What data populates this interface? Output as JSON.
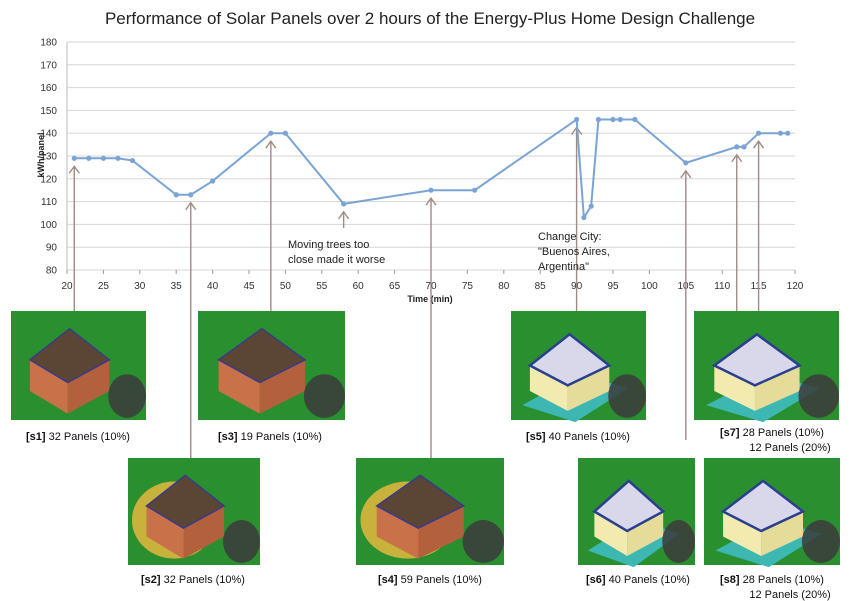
{
  "chart_data": {
    "type": "line",
    "title": "Performance of Solar Panels over 2 hours of the Energy-Plus Home Design Challenge",
    "xlabel": "Time (min)",
    "ylabel": "kWh/panel",
    "xlim": [
      20,
      120
    ],
    "ylim": [
      80,
      180
    ],
    "xticks": [
      20,
      25,
      30,
      35,
      40,
      45,
      50,
      55,
      60,
      65,
      70,
      75,
      80,
      85,
      90,
      95,
      100,
      105,
      110,
      115,
      120
    ],
    "yticks": [
      80,
      90,
      100,
      110,
      120,
      130,
      140,
      150,
      160,
      170,
      180
    ],
    "grid": "horizontal",
    "series": [
      {
        "color": "#7ba4d6",
        "x": [
          21,
          23,
          25,
          27,
          29,
          35,
          37,
          40,
          48,
          50,
          58,
          70,
          76,
          90,
          91,
          92,
          93,
          95,
          96,
          98,
          105,
          112,
          113,
          115,
          118,
          119
        ],
        "y": [
          129,
          129,
          129,
          129,
          128,
          113,
          113,
          119,
          140,
          140,
          109,
          115,
          115,
          146,
          103,
          108,
          146,
          146,
          146,
          146,
          127,
          134,
          134,
          140,
          140,
          140
        ]
      }
    ],
    "annotations": [
      {
        "id": "trees",
        "lines": [
          "Moving trees too",
          "close made it worse"
        ],
        "x": 58
      },
      {
        "id": "city",
        "lines": [
          "Change City:",
          "\"Buenos Aires,",
          "Argentina\""
        ],
        "x": 90
      }
    ],
    "snapshots": [
      {
        "tag": "[s1]",
        "lines": [
          "32 Panels (10%)"
        ],
        "x": 21,
        "style": "brick"
      },
      {
        "tag": "[s2]",
        "lines": [
          "32 Panels (10%)"
        ],
        "x": 37,
        "style": "trees"
      },
      {
        "tag": "[s3]",
        "lines": [
          "19 Panels (10%)"
        ],
        "x": 48,
        "style": "brick"
      },
      {
        "tag": "[s4]",
        "lines": [
          "59 Panels (10%)"
        ],
        "x": 70,
        "style": "trees"
      },
      {
        "tag": "[s5]",
        "lines": [
          "40 Panels (10%)"
        ],
        "x": 90,
        "style": "white"
      },
      {
        "tag": "[s6]",
        "lines": [
          "40 Panels (10%)"
        ],
        "x": 105,
        "style": "white"
      },
      {
        "tag": "[s7]",
        "lines": [
          "28 Panels (10%)",
          "12 Panels (20%)"
        ],
        "x": 112,
        "style": "white"
      },
      {
        "tag": "[s8]",
        "lines": [
          "28 Panels (10%)",
          "12 Panels (20%)"
        ],
        "x": 115,
        "style": "white"
      }
    ],
    "colors": {
      "grass": "#2a8f2e",
      "line": "#7ba4d6",
      "arrow": "#a08a84"
    }
  }
}
